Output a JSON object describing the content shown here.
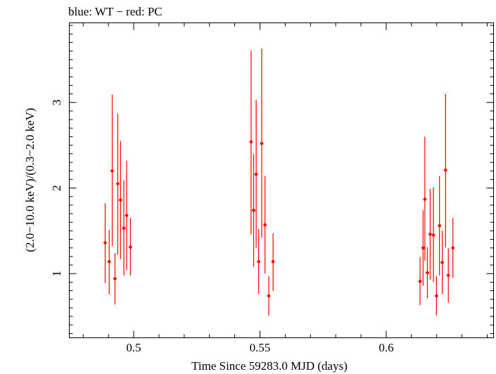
{
  "chart_data": {
    "type": "scatter",
    "title": "blue: WT − red: PC",
    "xlabel": "Time Since 59283.0 MJD (days)",
    "ylabel": "(2.0−10.0 keV)/(0.3−2.0 keV)",
    "xlim": [
      0.4745,
      0.6425
    ],
    "ylim": [
      0.25,
      3.93
    ],
    "xticks": [
      0.5,
      0.55,
      0.6
    ],
    "xtick_labels": [
      "0.5",
      "0.55",
      "0.6"
    ],
    "yticks": [
      1,
      2,
      3
    ],
    "ytick_labels": [
      "1",
      "2",
      "3"
    ],
    "grid": false,
    "series": [
      {
        "color": "#ff0000",
        "points": [
          {
            "x": 0.4887,
            "y": 1.36,
            "lo": 0.89,
            "hi": 1.82
          },
          {
            "x": 0.4903,
            "y": 1.14,
            "lo": 0.76,
            "hi": 1.51
          },
          {
            "x": 0.4915,
            "y": 2.2,
            "lo": 1.32,
            "hi": 3.09
          },
          {
            "x": 0.4926,
            "y": 0.94,
            "lo": 0.64,
            "hi": 1.24
          },
          {
            "x": 0.4937,
            "y": 2.05,
            "lo": 1.22,
            "hi": 2.87
          },
          {
            "x": 0.4948,
            "y": 1.86,
            "lo": 1.17,
            "hi": 2.55
          },
          {
            "x": 0.4961,
            "y": 1.53,
            "lo": 0.98,
            "hi": 2.09
          },
          {
            "x": 0.4972,
            "y": 1.68,
            "lo": 1.04,
            "hi": 2.32
          },
          {
            "x": 0.4987,
            "y": 1.31,
            "lo": 0.98,
            "hi": 1.65
          },
          {
            "x": 0.5465,
            "y": 2.54,
            "lo": 1.46,
            "hi": 3.61
          },
          {
            "x": 0.5475,
            "y": 1.74,
            "lo": 1.08,
            "hi": 2.4
          },
          {
            "x": 0.5485,
            "y": 2.16,
            "lo": 1.3,
            "hi": 3.03
          },
          {
            "x": 0.5495,
            "y": 1.14,
            "lo": 0.76,
            "hi": 1.52
          },
          {
            "x": 0.5507,
            "y": 2.52,
            "lo": 1.42,
            "hi": 3.63
          },
          {
            "x": 0.552,
            "y": 1.57,
            "lo": 1.0,
            "hi": 2.14
          },
          {
            "x": 0.5535,
            "y": 0.74,
            "lo": 0.51,
            "hi": 0.97
          },
          {
            "x": 0.5552,
            "y": 1.14,
            "lo": 0.8,
            "hi": 1.47
          },
          {
            "x": 0.6134,
            "y": 0.91,
            "lo": 0.63,
            "hi": 1.19
          },
          {
            "x": 0.6146,
            "y": 1.3,
            "lo": 0.86,
            "hi": 1.74
          },
          {
            "x": 0.6153,
            "y": 1.87,
            "lo": 1.15,
            "hi": 2.6
          },
          {
            "x": 0.6163,
            "y": 1.01,
            "lo": 0.71,
            "hi": 1.31
          },
          {
            "x": 0.6174,
            "y": 1.46,
            "lo": 0.93,
            "hi": 1.99
          },
          {
            "x": 0.6187,
            "y": 1.45,
            "lo": 0.9,
            "hi": 2.01
          },
          {
            "x": 0.6199,
            "y": 0.74,
            "lo": 0.51,
            "hi": 0.97
          },
          {
            "x": 0.6211,
            "y": 1.56,
            "lo": 0.98,
            "hi": 2.14
          },
          {
            "x": 0.6222,
            "y": 1.13,
            "lo": 0.76,
            "hi": 1.5
          },
          {
            "x": 0.6235,
            "y": 2.21,
            "lo": 1.31,
            "hi": 3.1
          },
          {
            "x": 0.6246,
            "y": 0.98,
            "lo": 0.66,
            "hi": 1.3
          },
          {
            "x": 0.6264,
            "y": 1.3,
            "lo": 0.95,
            "hi": 1.65
          }
        ]
      }
    ]
  }
}
